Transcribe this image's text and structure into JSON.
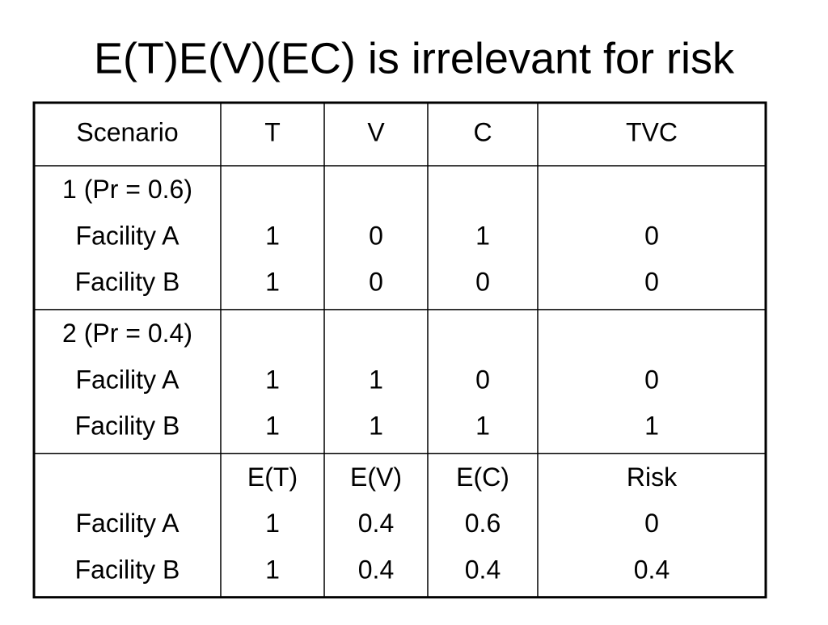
{
  "title": "E(T)E(V)(EC) is irrelevant for risk",
  "table": {
    "header": [
      "Scenario",
      "T",
      "V",
      "C",
      "TVC"
    ],
    "groups": [
      {
        "lines": [
          {
            "label": "1 (Pr = 0.6)"
          },
          {
            "label": "Facility A",
            "cells": [
              "1",
              "0",
              "1",
              "0"
            ]
          },
          {
            "label": "Facility B",
            "cells": [
              "1",
              "0",
              "0",
              "0"
            ]
          }
        ]
      },
      {
        "lines": [
          {
            "label": "2 (Pr = 0.4)"
          },
          {
            "label": "Facility A",
            "cells": [
              "1",
              "1",
              "0",
              "0"
            ]
          },
          {
            "label": "Facility B",
            "cells": [
              "1",
              "1",
              "1",
              "1"
            ]
          }
        ]
      },
      {
        "lines": [
          {
            "cells": [
              "E(T)",
              "E(V)",
              "E(C)",
              "Risk"
            ]
          },
          {
            "label": "Facility A",
            "cells": [
              "1",
              "0.4",
              "0.6",
              "0"
            ]
          },
          {
            "label": "Facility B",
            "cells": [
              "1",
              "0.4",
              "0.4",
              "0.4"
            ]
          }
        ]
      }
    ]
  }
}
